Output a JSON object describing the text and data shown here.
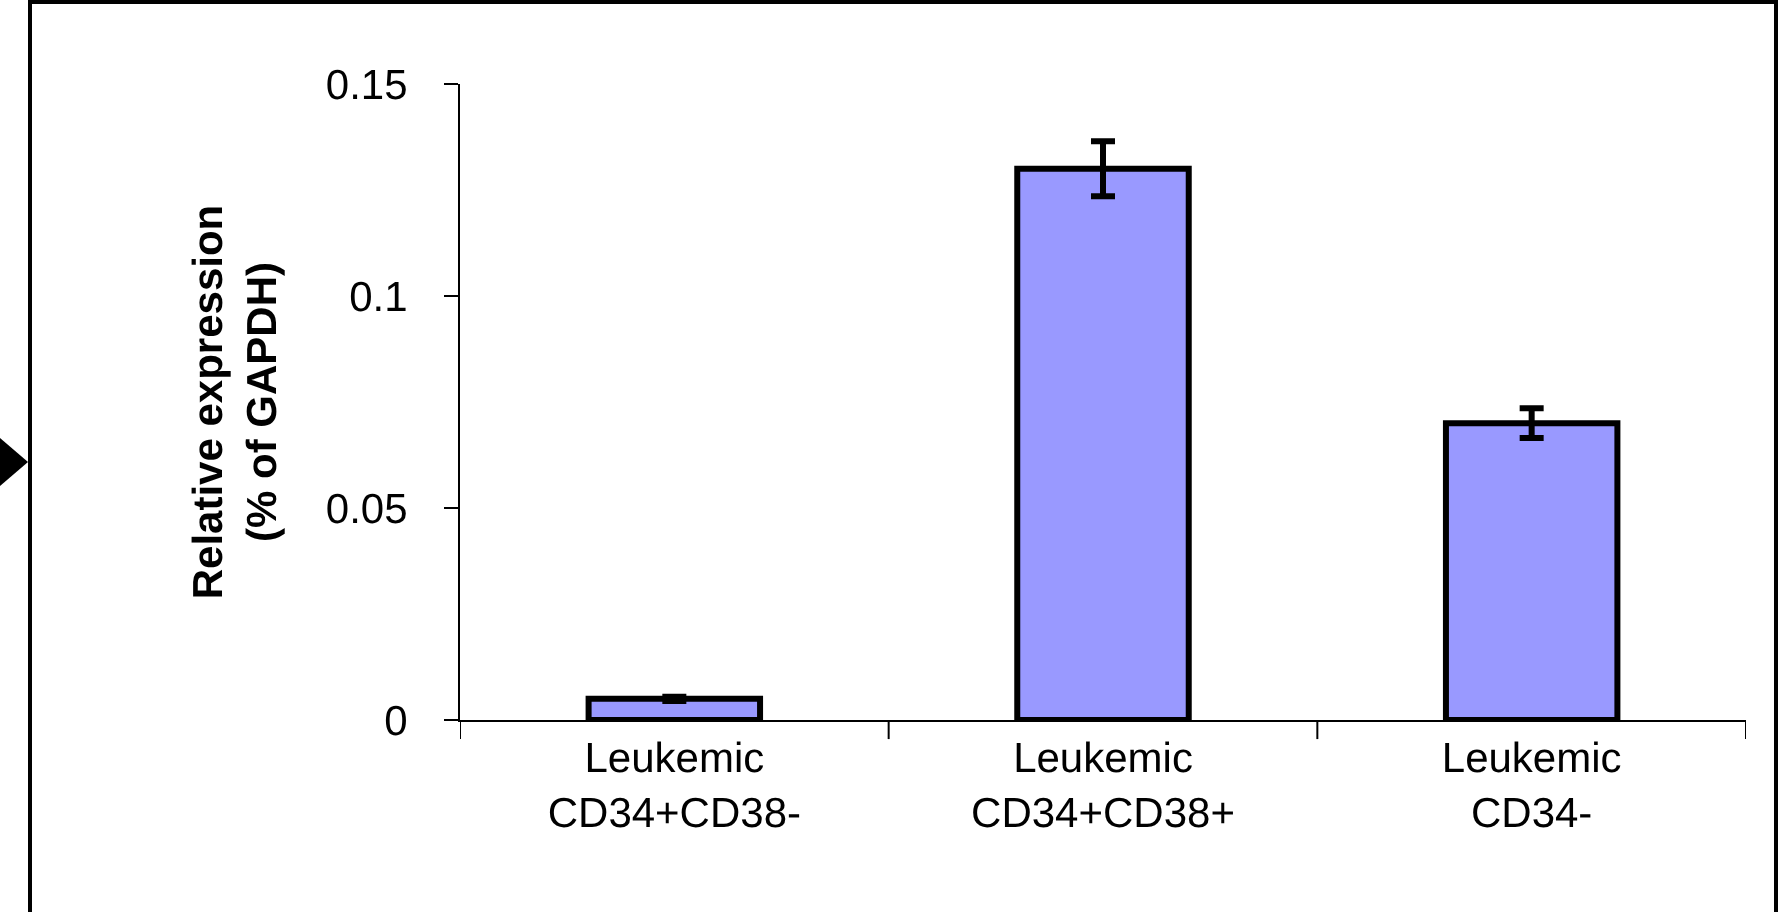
{
  "chart_data": {
    "type": "bar",
    "ylabel": "Relative expression\n(% of GAPDH)",
    "categories": [
      "Leukemic CD34+CD38-",
      "Leukemic CD34+CD38+",
      "Leukemic CD34-"
    ],
    "values": [
      0.005,
      0.13,
      0.07
    ],
    "errors": [
      0.0005,
      0.0065,
      0.0035
    ],
    "color": "#9999ff",
    "ylim": [
      0,
      0.15
    ],
    "yticks": [
      0,
      0.05,
      0.1,
      0.15
    ],
    "grid": false
  }
}
